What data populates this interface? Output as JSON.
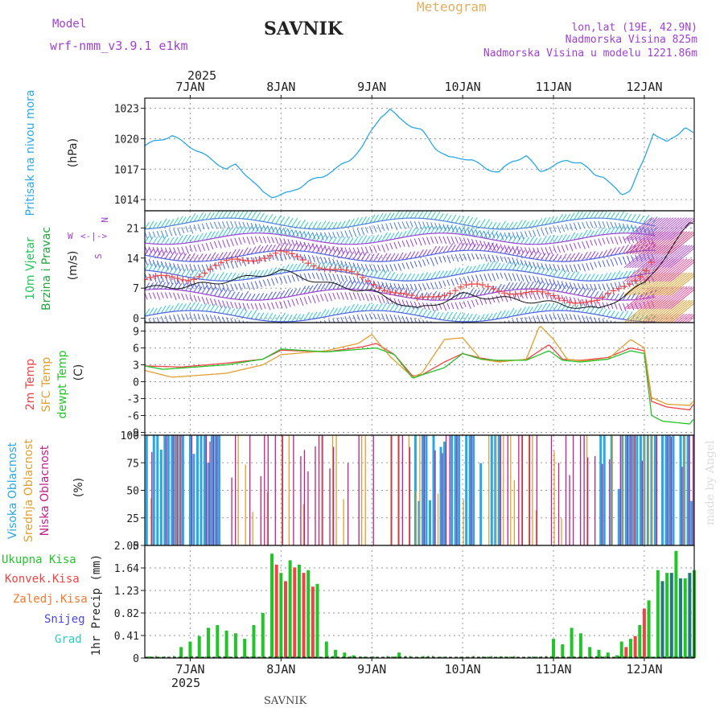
{
  "header": {
    "model_label": "Model",
    "model_name": "wrf-nmm_v3.9.1 e1km",
    "station": "SAVNIK",
    "product": "Meteogram",
    "coords": "lon,lat (19E, 42.9N)",
    "elevation": "Nadmorska Visina 825m",
    "model_elevation": "Nadmorska Visina u modelu 1221.86m",
    "year_top": "2025",
    "year_bottom": "2025",
    "footer_station": "SAVNIK",
    "watermark": "made by Angel"
  },
  "colors": {
    "pressure": "#2aa7e6",
    "wind_label_1": "#22c455",
    "wind_label_2": "#1fa63c",
    "temp_2m": "#ee4444",
    "temp_sfc": "#e0a030",
    "temp_dew": "#22c42a",
    "cloud_high": "#2aa7e6",
    "cloud_mid": "#e0a030",
    "cloud_low": "#c0208a",
    "precip_total": "#22c42a",
    "precip_conv": "#ee4444",
    "precip_frz": "#f07a30",
    "precip_snow": "#4848e0",
    "precip_hail": "#30c8c8",
    "header_purple": "#a040d0",
    "header_orange": "#e0b060"
  },
  "chart_data": [
    {
      "type": "line",
      "name": "pressure",
      "ylabel_1": "Pritisak na nivou mora",
      "ylabel_2": "(hPa)",
      "x_unit": "days",
      "ylim": [
        1012.9,
        1024.0
      ],
      "yticks": [
        1014,
        1017,
        1020,
        1023
      ],
      "series": [
        {
          "x": [
            0,
            0.1,
            0.3,
            0.6,
            0.9,
            1.0,
            1.15,
            1.3,
            1.4,
            1.5,
            1.6,
            1.7,
            1.8,
            1.95,
            2.05,
            2.25,
            2.4,
            2.5,
            2.6,
            2.7,
            2.8,
            2.95,
            3.05,
            3.2,
            3.35,
            3.5,
            3.6,
            3.75,
            3.9,
            4.05,
            4.2,
            4.35,
            4.5,
            4.65,
            4.8,
            4.95,
            5.05,
            5.15,
            5.25,
            5.35,
            5.5,
            5.6,
            5.75,
            5.85,
            5.95,
            6.05
          ],
          "y": [
            1019.3,
            1019.7,
            1020.3,
            1018.7,
            1017.0,
            1017.4,
            1016.2,
            1014.7,
            1014.3,
            1014.5,
            1014.7,
            1015.2,
            1015.8,
            1016.2,
            1016.8,
            1017.8,
            1019.3,
            1020.8,
            1022.2,
            1022.9,
            1022.0,
            1021.2,
            1020.8,
            1019.1,
            1018.1,
            1018.1,
            1017.9,
            1017.1,
            1016.7,
            1017.8,
            1018.3,
            1016.8,
            1017.3,
            1017.9,
            1017.6,
            1016.5,
            1016.3,
            1015.3,
            1014.5,
            1015.0,
            1018.0,
            1020.6,
            1019.6,
            1020.3,
            1021.2,
            1020.4
          ]
        }
      ]
    },
    {
      "type": "line",
      "name": "wind",
      "ylabel_1": "10m Vjetar",
      "ylabel_2": "Brzina i Pravac",
      "ylabel_3": "(m/s)",
      "compass": {
        "n": "N",
        "w": "W",
        "s": "S"
      },
      "ylim": [
        -1,
        25
      ],
      "yticks": [
        0,
        7,
        14,
        21
      ],
      "series": [
        {
          "name": "speed",
          "x": [
            0,
            0.5,
            1.0,
            1.5,
            2.0,
            2.5,
            3.0,
            3.5,
            4.0,
            4.5,
            5.0,
            5.5,
            6.0
          ],
          "y": [
            7.0,
            7.5,
            9.0,
            11.0,
            8.0,
            6.2,
            2.0,
            5.5,
            4.5,
            3.5,
            2.0,
            8.0,
            22.0
          ]
        },
        {
          "name": "gust",
          "x": [
            0,
            0.5,
            1.0,
            1.5,
            2.0,
            2.5,
            3.0,
            3.5,
            4.0,
            4.5,
            5.0,
            5.5,
            6.0
          ],
          "y": [
            9.0,
            9.5,
            13.5,
            15.0,
            12.0,
            8.5,
            4.0,
            7.5,
            6.5,
            5.0,
            3.5,
            11.0,
            24.0
          ]
        }
      ]
    },
    {
      "type": "line",
      "name": "temperature",
      "ylabel_1": "2m Temp",
      "ylabel_2": "SFC Temp",
      "ylabel_3": "dewpt Temp",
      "ylabel_4": "(C)",
      "ylim": [
        -9.5,
        10.5
      ],
      "yticks": [
        -9,
        -6,
        -3,
        0,
        3,
        6,
        9
      ],
      "series": [
        {
          "name": "2m",
          "x": [
            0,
            0.4,
            0.9,
            1.3,
            1.5,
            2.0,
            2.4,
            2.55,
            2.75,
            2.95,
            3.05,
            3.3,
            3.5,
            3.7,
            3.9,
            4.2,
            4.45,
            4.6,
            4.8,
            5.1,
            5.35,
            5.5,
            5.58,
            5.75,
            6.0,
            6.05
          ],
          "y": [
            2.8,
            2.6,
            3.3,
            4.0,
            5.6,
            5.3,
            6.2,
            6.8,
            4.8,
            1.0,
            1.2,
            3.5,
            5.0,
            4.2,
            3.7,
            3.9,
            6.6,
            4.0,
            3.8,
            4.3,
            6.0,
            5.5,
            -3.5,
            -4.5,
            -5.0,
            -3.8
          ]
        },
        {
          "name": "sfc",
          "x": [
            0,
            0.3,
            0.9,
            1.3,
            1.5,
            2.0,
            2.35,
            2.5,
            2.7,
            2.95,
            3.05,
            3.3,
            3.5,
            3.7,
            3.9,
            4.2,
            4.35,
            4.5,
            4.65,
            4.8,
            5.1,
            5.35,
            5.5,
            5.58,
            5.75,
            6.0,
            6.05
          ],
          "y": [
            2.0,
            0.8,
            1.5,
            3.0,
            4.8,
            5.5,
            6.8,
            8.4,
            4.5,
            0.8,
            1.5,
            7.5,
            7.8,
            4.0,
            3.5,
            4.0,
            10.0,
            7.5,
            4.0,
            3.7,
            4.0,
            7.5,
            6.0,
            -2.8,
            -4.0,
            -4.2,
            -3.3
          ]
        },
        {
          "name": "dew",
          "x": [
            0,
            0.2,
            0.9,
            1.3,
            1.5,
            2.0,
            2.4,
            2.55,
            2.75,
            2.95,
            3.05,
            3.3,
            3.5,
            3.7,
            3.9,
            4.2,
            4.45,
            4.6,
            4.8,
            5.1,
            5.35,
            5.5,
            5.58,
            5.7,
            6.0,
            6.05
          ],
          "y": [
            2.8,
            2.2,
            3.0,
            4.0,
            5.8,
            5.3,
            5.8,
            6.0,
            4.8,
            0.6,
            1.2,
            2.5,
            5.0,
            4.0,
            3.8,
            3.8,
            5.5,
            3.8,
            3.5,
            4.0,
            5.5,
            5.0,
            -6.0,
            -7.0,
            -7.5,
            -6.5
          ]
        }
      ]
    },
    {
      "type": "bar",
      "name": "clouds",
      "ylabel_1": "Visoka Oblacnost",
      "ylabel_2": "Srednja Oblacnost",
      "ylabel_3": "Niska Oblacnost",
      "ylabel_4": "(%)",
      "ylim": [
        0,
        100
      ],
      "yticks": [
        0,
        25,
        50,
        75,
        100
      ],
      "series": [
        {
          "name": "high",
          "values": "hourly cover 0-100, densest on 6JAN-7JAN, 9JAN-10JAN and 11JAN-12JAN"
        },
        {
          "name": "mid",
          "values": "scattered hourly values"
        },
        {
          "name": "low",
          "values": "frequent 100% spikes throughout"
        }
      ]
    },
    {
      "type": "bar",
      "name": "precipitation",
      "legend": [
        "Ukupna Kisa",
        "Konvek.Kisa",
        "Zaledj.Kisa",
        "Snijeg",
        "Grad"
      ],
      "ylabel": "1hr Precip (mm)",
      "ylim": [
        0,
        2.05
      ],
      "yticks": [
        0,
        0.41,
        0.82,
        1.23,
        1.64,
        2.05
      ],
      "ytick_labels": [
        "0",
        "0.41",
        "0.82",
        "1.23",
        "1.64",
        "2.05"
      ],
      "series": [
        {
          "name": "total",
          "x": [
            0.05,
            0.4,
            0.5,
            0.6,
            0.7,
            0.8,
            0.9,
            1.0,
            1.1,
            1.2,
            1.3,
            1.4,
            1.5,
            1.6,
            1.7,
            1.8,
            1.9,
            2.0,
            2.1,
            2.2,
            2.3,
            2.4,
            2.8,
            3.1,
            3.9,
            4.5,
            4.6,
            4.7,
            4.8,
            4.9,
            5.0,
            5.1,
            5.2,
            5.25,
            5.35,
            5.45,
            5.55,
            5.65,
            5.75,
            5.85,
            5.95,
            6.05
          ],
          "values": [
            0.03,
            0.2,
            0.3,
            0.4,
            0.55,
            0.6,
            0.5,
            0.45,
            0.35,
            0.6,
            0.82,
            1.9,
            1.55,
            1.78,
            1.7,
            1.6,
            1.35,
            0.3,
            0.15,
            0.1,
            0.05,
            0.02,
            0.1,
            0.02,
            0.02,
            0.35,
            0.25,
            0.55,
            0.45,
            0.2,
            0.15,
            0.1,
            0.05,
            0.3,
            0.35,
            0.6,
            1.05,
            1.6,
            1.55,
            1.95,
            1.45,
            1.6
          ]
        },
        {
          "name": "conv",
          "x": [
            1.45,
            1.55,
            1.65,
            1.75,
            1.85,
            5.3,
            5.4,
            5.5
          ],
          "values": [
            1.7,
            1.4,
            1.65,
            1.55,
            1.3,
            0.2,
            0.4,
            0.9
          ]
        },
        {
          "name": "snow",
          "x": [
            5.7,
            5.8,
            5.9,
            6.0
          ],
          "values": [
            1.4,
            1.55,
            1.45,
            1.55
          ]
        }
      ]
    }
  ],
  "axis": {
    "days": [
      "7JAN",
      "8JAN",
      "9JAN",
      "10JAN",
      "11JAN",
      "12JAN"
    ],
    "day_positions": [
      0.5,
      1.5,
      2.5,
      3.5,
      4.5,
      5.5
    ],
    "range": [
      0,
      6.05
    ]
  }
}
